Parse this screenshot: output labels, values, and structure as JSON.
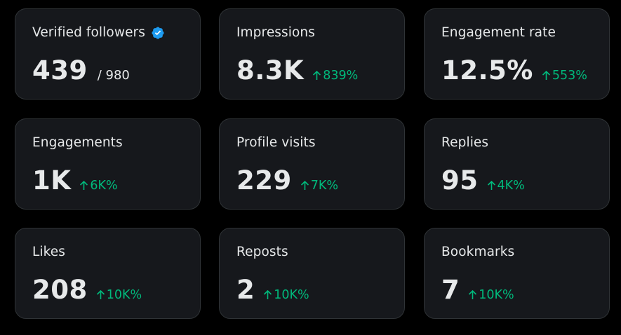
{
  "colors": {
    "background": "#000000",
    "card": "#16181c",
    "card_border": "#2f3336",
    "text": "#e7e9ea",
    "positive": "#00ba7c",
    "verified": "#1d9bf0"
  },
  "cards": [
    {
      "label": "Verified followers",
      "value": "439",
      "sub": "/ 980",
      "icon": "verified-badge-icon"
    },
    {
      "label": "Impressions",
      "value": "8.3K",
      "change": "839%",
      "change_icon": "arrow-up-icon"
    },
    {
      "label": "Engagement rate",
      "value": "12.5%",
      "change": "553%",
      "change_icon": "arrow-up-icon"
    },
    {
      "label": "Engagements",
      "value": "1K",
      "change": "6K%",
      "change_icon": "arrow-up-icon"
    },
    {
      "label": "Profile visits",
      "value": "229",
      "change": "7K%",
      "change_icon": "arrow-up-icon"
    },
    {
      "label": "Replies",
      "value": "95",
      "change": "4K%",
      "change_icon": "arrow-up-icon"
    },
    {
      "label": "Likes",
      "value": "208",
      "change": "10K%",
      "change_icon": "arrow-up-icon"
    },
    {
      "label": "Reposts",
      "value": "2",
      "change": "10K%",
      "change_icon": "arrow-up-icon"
    },
    {
      "label": "Bookmarks",
      "value": "7",
      "change": "10K%",
      "change_icon": "arrow-up-icon"
    }
  ]
}
